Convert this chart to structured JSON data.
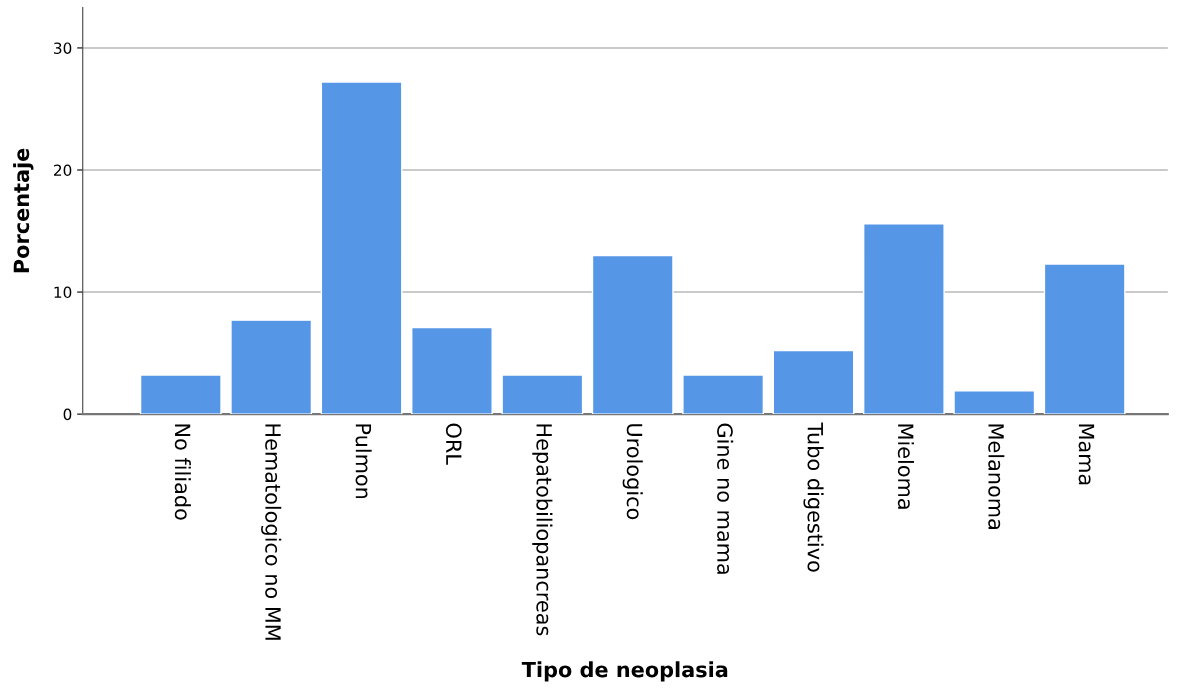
{
  "chart_data": {
    "type": "bar",
    "xlabel": "Tipo de neoplasia",
    "ylabel": "Porcentaje",
    "categories": [
      "No filiado",
      "Hematologico no MM",
      "Pulmon",
      "ORL",
      "Hepatobiliopancreas",
      "Urologico",
      "Gine no mama",
      "Tubo digestivo",
      "Mieloma",
      "Melanoma",
      "Mama"
    ],
    "values": [
      3.2,
      7.7,
      27.2,
      7.1,
      3.2,
      13.0,
      3.2,
      5.2,
      15.6,
      1.9,
      12.3
    ],
    "color": "#5596e6",
    "ylim": [
      0,
      33.3
    ],
    "yticks": [
      0,
      10,
      20,
      30
    ],
    "grid": "y",
    "legend": false
  }
}
